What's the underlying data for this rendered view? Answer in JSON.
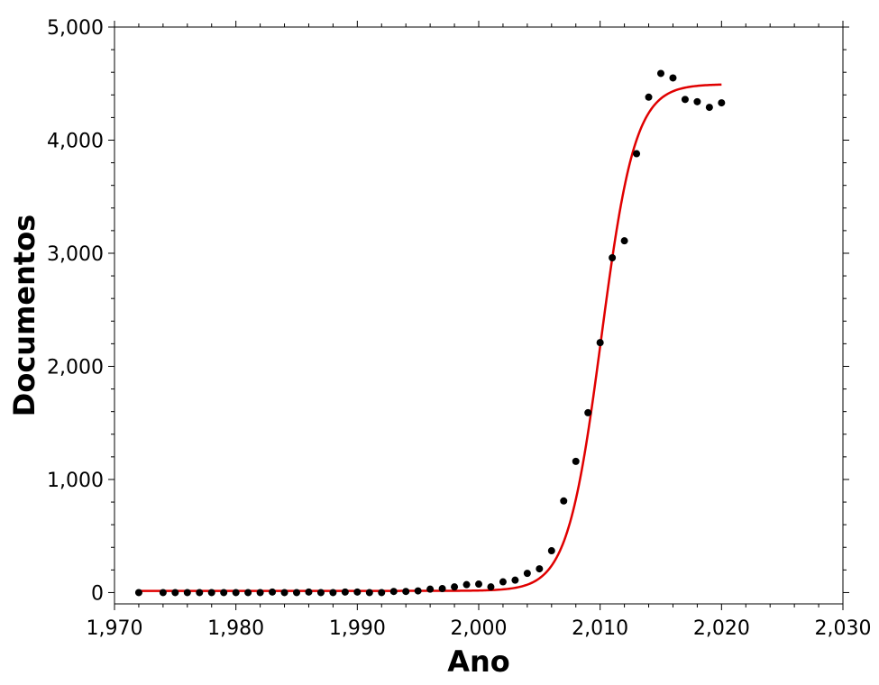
{
  "chart_data": {
    "type": "scatter",
    "title": "",
    "xlabel": "Ano",
    "ylabel": "Documentos",
    "xlim": [
      1970,
      2030
    ],
    "ylim": [
      -100,
      5000
    ],
    "x_ticks": [
      1970,
      1980,
      1990,
      2000,
      2010,
      2020,
      2030
    ],
    "x_tick_labels": [
      "1,970",
      "1,980",
      "1,990",
      "2,000",
      "2,010",
      "2,020",
      "2,030"
    ],
    "y_ticks": [
      0,
      1000,
      2000,
      3000,
      4000,
      5000
    ],
    "y_tick_labels": [
      "0",
      "1,000",
      "2,000",
      "3,000",
      "4,000",
      "5,000"
    ],
    "grid": false,
    "legend": "none",
    "series": [
      {
        "type": "scatter",
        "color": "#000000",
        "x": [
          1972,
          1974,
          1975,
          1976,
          1977,
          1978,
          1979,
          1980,
          1981,
          1982,
          1983,
          1984,
          1985,
          1986,
          1987,
          1988,
          1989,
          1990,
          1991,
          1992,
          1993,
          1994,
          1995,
          1996,
          1997,
          1998,
          1999,
          2000,
          2001,
          2002,
          2003,
          2004,
          2005,
          2006,
          2007,
          2008,
          2009,
          2010,
          2011,
          2012,
          2013,
          2014,
          2015,
          2016,
          2017,
          2018,
          2019,
          2020
        ],
        "y": [
          0,
          0,
          0,
          0,
          0,
          0,
          0,
          0,
          0,
          0,
          5,
          0,
          0,
          5,
          0,
          0,
          5,
          5,
          0,
          0,
          10,
          10,
          15,
          30,
          35,
          50,
          70,
          75,
          50,
          95,
          110,
          170,
          210,
          370,
          810,
          1160,
          1590,
          2210,
          2960,
          3110,
          3880,
          4380,
          4590,
          4550,
          4360,
          4340,
          4290,
          4330
        ]
      },
      {
        "type": "line",
        "color": "#e00000",
        "model": "logistic",
        "x_range": [
          1972,
          2020
        ],
        "params": {
          "base": 15,
          "L": 4480,
          "k": 0.72,
          "x0": 2010.1
        }
      }
    ]
  }
}
